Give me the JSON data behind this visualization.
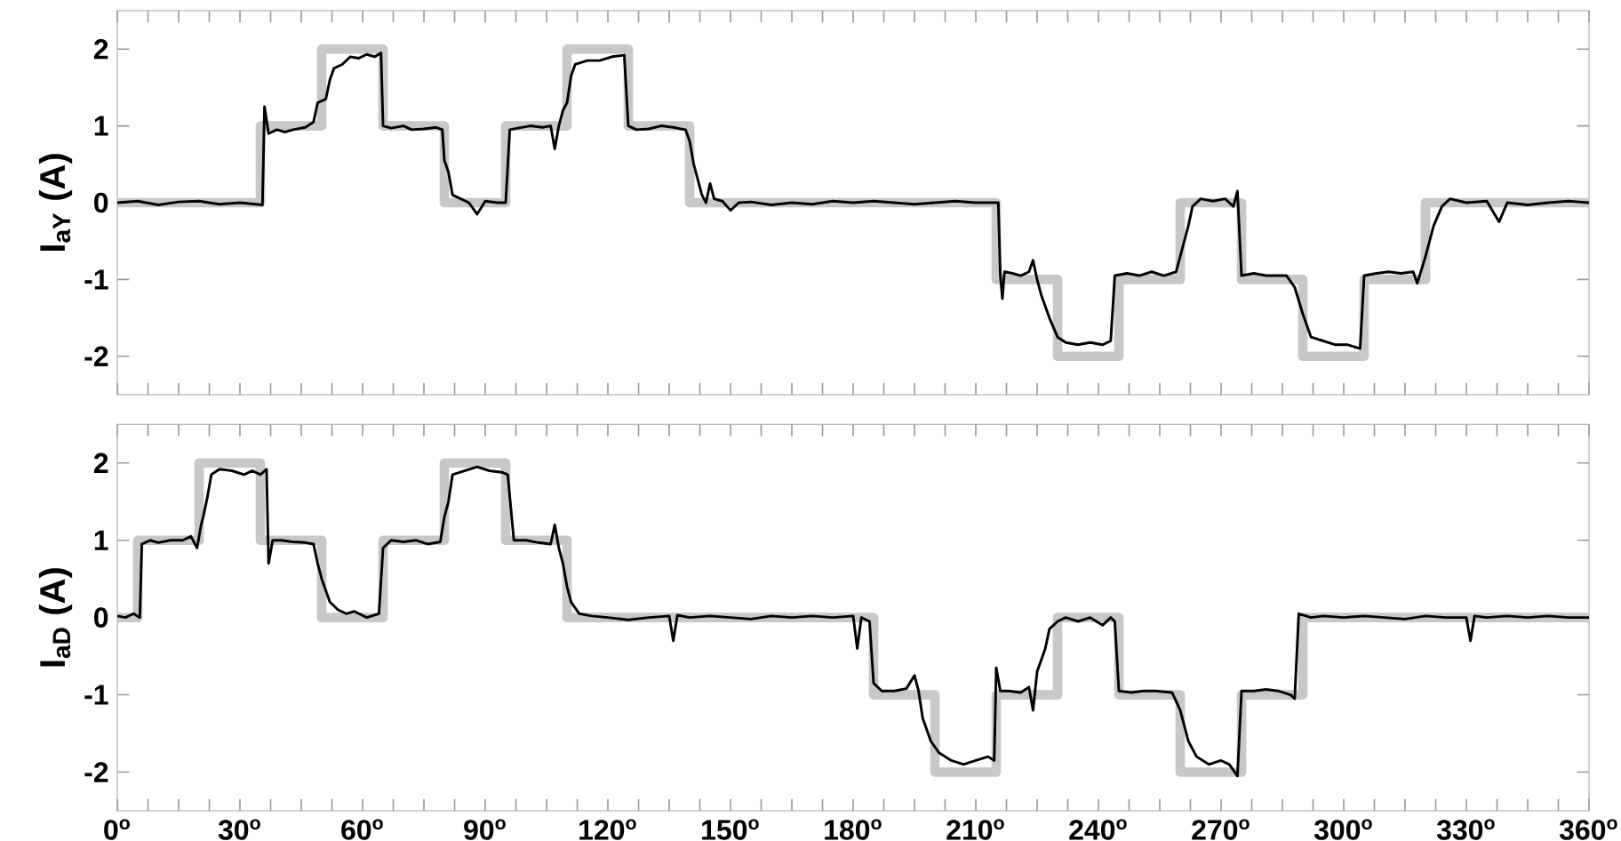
{
  "chart_data": [
    {
      "type": "line",
      "ylabel": "I$_{aY}$ (A)",
      "xlim": [
        0,
        360
      ],
      "ylim": [
        -2.5,
        2.5
      ],
      "yticks": [
        -2,
        -1,
        0,
        1,
        2
      ],
      "tick_labels": "y",
      "xticks": [
        {
          "value": 0,
          "label": null
        },
        {
          "value": 7.5,
          "label": null
        },
        {
          "value": 15,
          "label": null
        },
        {
          "value": 22.5,
          "label": null
        },
        {
          "value": 30,
          "label": null
        },
        {
          "value": 37.5,
          "label": null
        },
        {
          "value": 45,
          "label": null
        },
        {
          "value": 52.5,
          "label": null
        },
        {
          "value": 60,
          "label": null
        },
        {
          "value": 67.5,
          "label": null
        },
        {
          "value": 75,
          "label": null
        },
        {
          "value": 82.5,
          "label": null
        },
        {
          "value": 90,
          "label": null
        },
        {
          "value": 97.5,
          "label": null
        },
        {
          "value": 105,
          "label": null
        },
        {
          "value": 112.5,
          "label": null
        },
        {
          "value": 120,
          "label": null
        },
        {
          "value": 127.5,
          "label": null
        },
        {
          "value": 135,
          "label": null
        },
        {
          "value": 142.5,
          "label": null
        },
        {
          "value": 150,
          "label": null
        },
        {
          "value": 157.5,
          "label": null
        },
        {
          "value": 165,
          "label": null
        },
        {
          "value": 172.5,
          "label": null
        },
        {
          "value": 180,
          "label": null
        },
        {
          "value": 187.5,
          "label": null
        },
        {
          "value": 195,
          "label": null
        },
        {
          "value": 202.5,
          "label": null
        },
        {
          "value": 210,
          "label": null
        },
        {
          "value": 217.5,
          "label": null
        },
        {
          "value": 225,
          "label": null
        },
        {
          "value": 232.5,
          "label": null
        },
        {
          "value": 240,
          "label": null
        },
        {
          "value": 247.5,
          "label": null
        },
        {
          "value": 255,
          "label": null
        },
        {
          "value": 262.5,
          "label": null
        },
        {
          "value": 270,
          "label": null
        },
        {
          "value": 277.5,
          "label": null
        },
        {
          "value": 285,
          "label": null
        },
        {
          "value": 292.5,
          "label": null
        },
        {
          "value": 300,
          "label": null
        },
        {
          "value": 307.5,
          "label": null
        },
        {
          "value": 315,
          "label": null
        },
        {
          "value": 322.5,
          "label": null
        },
        {
          "value": 330,
          "label": null
        },
        {
          "value": 337.5,
          "label": null
        },
        {
          "value": 345,
          "label": null
        },
        {
          "value": 352.5,
          "label": null
        },
        {
          "value": 360,
          "label": null
        }
      ],
      "series": [
        {
          "type": "step",
          "color": "#c8c8c8",
          "x": [
            0,
            35,
            50,
            65,
            80,
            95,
            110,
            125,
            140,
            215,
            230,
            245,
            260,
            275,
            290,
            305,
            320,
            360
          ],
          "values": [
            0,
            1,
            2,
            1,
            0,
            1,
            2,
            1,
            0,
            -1,
            -2,
            -1,
            0,
            -1,
            -2,
            -1,
            0,
            0
          ]
        },
        {
          "type": "line",
          "color": "#000000",
          "x": [
            0,
            5,
            10,
            15,
            20,
            25,
            30,
            35.5,
            36,
            37,
            39,
            41,
            43,
            46,
            48,
            49,
            51,
            52,
            53,
            55,
            57,
            59,
            61,
            63,
            64.5,
            65,
            67,
            70,
            72,
            75,
            78,
            79.5,
            80,
            81,
            82,
            84,
            86,
            88,
            90,
            93,
            95,
            96,
            98,
            101,
            104,
            106,
            107,
            108,
            109,
            110,
            111,
            112,
            115,
            118,
            121,
            124,
            125,
            127,
            130,
            133,
            136,
            139,
            140,
            141,
            142,
            143,
            144,
            145,
            146,
            148,
            150,
            152,
            155,
            160,
            165,
            170,
            175,
            180,
            185,
            190,
            195,
            200,
            205,
            210,
            215.5,
            216,
            216.5,
            217,
            219,
            221,
            223,
            224,
            225,
            226,
            228,
            230,
            232,
            235,
            238,
            241,
            243,
            244,
            247,
            250,
            253,
            256,
            259,
            260,
            262,
            263,
            265,
            268,
            271,
            273,
            274,
            275,
            278,
            281,
            284,
            286,
            288,
            290,
            292,
            295,
            298,
            301,
            304,
            305,
            308,
            311,
            314,
            317,
            318,
            320,
            322,
            324,
            326,
            330,
            335,
            338,
            340,
            345,
            350,
            355,
            360
          ],
          "values": [
            0,
            0.02,
            -0.03,
            0.01,
            0.02,
            -0.02,
            0,
            -0.03,
            1.25,
            0.9,
            0.95,
            0.92,
            0.95,
            0.98,
            1.05,
            1.3,
            1.35,
            1.6,
            1.75,
            1.8,
            1.9,
            1.88,
            1.93,
            1.9,
            1.95,
            1,
            0.97,
            1,
            0.95,
            0.96,
            0.98,
            0.95,
            0.55,
            0.4,
            0.1,
            0.05,
            0,
            -0.15,
            0.02,
            0,
            0,
            0.95,
            0.97,
            1,
            0.98,
            1,
            0.7,
            1,
            1.2,
            1.3,
            1.65,
            1.8,
            1.85,
            1.85,
            1.9,
            1.92,
            1,
            0.95,
            0.96,
            1,
            0.98,
            0.95,
            0.8,
            0.5,
            0.3,
            0.1,
            0,
            0.25,
            0.05,
            0.02,
            -0.1,
            0,
            0.01,
            -0.03,
            0,
            -0.02,
            0.02,
            0,
            0.02,
            0,
            -0.02,
            0,
            0.02,
            0,
            0,
            -0.95,
            -1.25,
            -0.9,
            -0.92,
            -0.95,
            -0.9,
            -0.75,
            -1,
            -1.2,
            -1.5,
            -1.75,
            -1.82,
            -1.85,
            -1.82,
            -1.85,
            -1.8,
            -0.95,
            -0.92,
            -0.95,
            -0.9,
            -0.95,
            -0.9,
            -0.7,
            -0.3,
            -0.05,
            0.05,
            0.02,
            0.05,
            -0.05,
            0.15,
            -0.95,
            -0.92,
            -0.95,
            -0.95,
            -0.95,
            -1.1,
            -1.45,
            -1.75,
            -1.8,
            -1.85,
            -1.85,
            -1.9,
            -0.95,
            -0.92,
            -0.9,
            -0.92,
            -0.9,
            -1.05,
            -0.7,
            -0.3,
            -0.05,
            0.05,
            0,
            0.02,
            -0.25,
            0,
            -0.03,
            0,
            0.02,
            0
          ]
        }
      ]
    },
    {
      "type": "line",
      "ylabel": "I$_{aD}$ (A)",
      "xlim": [
        0,
        360
      ],
      "ylim": [
        -2.5,
        2.5
      ],
      "yticks": [
        -2,
        -1,
        0,
        1,
        2
      ],
      "xticks": [
        {
          "value": 0,
          "label": "0$^{o}$"
        },
        {
          "value": 7.5,
          "label": null
        },
        {
          "value": 15,
          "label": null
        },
        {
          "value": 22.5,
          "label": null
        },
        {
          "value": 30,
          "label": "30$^{o}$"
        },
        {
          "value": 37.5,
          "label": null
        },
        {
          "value": 45,
          "label": null
        },
        {
          "value": 52.5,
          "label": null
        },
        {
          "value": 60,
          "label": "60$^{o}$"
        },
        {
          "value": 67.5,
          "label": null
        },
        {
          "value": 75,
          "label": null
        },
        {
          "value": 82.5,
          "label": null
        },
        {
          "value": 90,
          "label": "90$^{o}$"
        },
        {
          "value": 97.5,
          "label": null
        },
        {
          "value": 105,
          "label": null
        },
        {
          "value": 112.5,
          "label": null
        },
        {
          "value": 120,
          "label": "120$^{o}$"
        },
        {
          "value": 127.5,
          "label": null
        },
        {
          "value": 135,
          "label": null
        },
        {
          "value": 142.5,
          "label": null
        },
        {
          "value": 150,
          "label": "150$^{o}$"
        },
        {
          "value": 157.5,
          "label": null
        },
        {
          "value": 165,
          "label": null
        },
        {
          "value": 172.5,
          "label": null
        },
        {
          "value": 180,
          "label": "180$^{o}$"
        },
        {
          "value": 187.5,
          "label": null
        },
        {
          "value": 195,
          "label": null
        },
        {
          "value": 202.5,
          "label": null
        },
        {
          "value": 210,
          "label": "210$^{o}$"
        },
        {
          "value": 217.5,
          "label": null
        },
        {
          "value": 225,
          "label": null
        },
        {
          "value": 232.5,
          "label": null
        },
        {
          "value": 240,
          "label": "240$^{o}$"
        },
        {
          "value": 247.5,
          "label": null
        },
        {
          "value": 255,
          "label": null
        },
        {
          "value": 262.5,
          "label": null
        },
        {
          "value": 270,
          "label": "270$^{o}$"
        },
        {
          "value": 277.5,
          "label": null
        },
        {
          "value": 285,
          "label": null
        },
        {
          "value": 292.5,
          "label": null
        },
        {
          "value": 300,
          "label": "300$^{o}$"
        },
        {
          "value": 307.5,
          "label": null
        },
        {
          "value": 315,
          "label": null
        },
        {
          "value": 322.5,
          "label": null
        },
        {
          "value": 330,
          "label": "330$^{o}$"
        },
        {
          "value": 337.5,
          "label": null
        },
        {
          "value": 345,
          "label": null
        },
        {
          "value": 352.5,
          "label": null
        },
        {
          "value": 360,
          "label": "360$^{o}$"
        }
      ],
      "series": [
        {
          "type": "step",
          "color": "#c8c8c8",
          "x": [
            0,
            5,
            20,
            35,
            50,
            65,
            80,
            95,
            110,
            185,
            200,
            215,
            230,
            245,
            260,
            275,
            290,
            360
          ],
          "values": [
            0,
            1,
            2,
            1,
            0,
            1,
            2,
            1,
            0,
            -1,
            -2,
            -1,
            0,
            -1,
            -2,
            -1,
            0,
            0
          ]
        },
        {
          "type": "line",
          "color": "#000000",
          "x": [
            0,
            2,
            4,
            5.5,
            6,
            8,
            10,
            13,
            16,
            18,
            19.5,
            20.5,
            21,
            22,
            23,
            25,
            28,
            31,
            33,
            35,
            36.5,
            37,
            38,
            40,
            43,
            46,
            48,
            49,
            50,
            52,
            54,
            56,
            58,
            61,
            64,
            65,
            67,
            70,
            73,
            76,
            79,
            80,
            81,
            82,
            85,
            88,
            91,
            94,
            95.5,
            97,
            100,
            103,
            106,
            107,
            108,
            109,
            110,
            111,
            113,
            116,
            120,
            125,
            130,
            135,
            136,
            137,
            140,
            145,
            150,
            155,
            160,
            165,
            170,
            175,
            180,
            181,
            182,
            184,
            185,
            187,
            190,
            193,
            195,
            196,
            197,
            199,
            201,
            204,
            207,
            210,
            213,
            214.5,
            215,
            216,
            218,
            221,
            223,
            224,
            225,
            227,
            228,
            230,
            232,
            235,
            238,
            241,
            243,
            244,
            245,
            248,
            251,
            254,
            258,
            260,
            262,
            264,
            267,
            270,
            272,
            274,
            275,
            278,
            281,
            284,
            287,
            288,
            289,
            292,
            295,
            300,
            305,
            310,
            315,
            320,
            325,
            330,
            331,
            332,
            335,
            340,
            345,
            350,
            355,
            360
          ],
          "values": [
            0.02,
            0,
            0.05,
            0,
            0.95,
            1,
            0.97,
            1,
            1,
            1.05,
            0.9,
            1.2,
            1.3,
            1.55,
            1.85,
            1.92,
            1.9,
            1.85,
            1.9,
            1.85,
            1.92,
            0.7,
            1,
            1,
            0.98,
            0.97,
            0.95,
            0.7,
            0.5,
            0.2,
            0.1,
            0.05,
            0.08,
            0,
            0.05,
            0.9,
            1,
            0.98,
            1,
            0.95,
            0.98,
            1.3,
            1.5,
            1.85,
            1.9,
            1.95,
            1.9,
            1.88,
            1.85,
            1,
            1,
            0.97,
            0.95,
            1.2,
            0.9,
            0.7,
            0.4,
            0.2,
            0.05,
            0.02,
            0,
            -0.03,
            0,
            0.02,
            -0.3,
            0.03,
            0,
            0.02,
            0,
            -0.02,
            0.02,
            0,
            0.02,
            0,
            0.02,
            -0.4,
            0,
            -0.05,
            -0.85,
            -0.95,
            -0.95,
            -0.92,
            -0.75,
            -0.95,
            -1.3,
            -1.6,
            -1.75,
            -1.85,
            -1.9,
            -1.85,
            -1.8,
            -1.85,
            -0.65,
            -0.95,
            -0.95,
            -0.97,
            -0.9,
            -1.2,
            -0.7,
            -0.4,
            -0.15,
            -0.05,
            0,
            -0.05,
            0,
            -0.1,
            0,
            -0.05,
            -0.95,
            -0.97,
            -0.95,
            -0.95,
            -0.97,
            -1.2,
            -1.6,
            -1.8,
            -1.9,
            -1.85,
            -1.9,
            -2.05,
            -0.95,
            -0.95,
            -0.93,
            -0.95,
            -1,
            -1.05,
            0.05,
            0,
            0.02,
            0,
            0.02,
            0,
            -0.02,
            0.02,
            0,
            0,
            -0.3,
            0.02,
            0,
            0.02,
            0,
            0.02,
            0,
            0
          ]
        }
      ]
    }
  ]
}
